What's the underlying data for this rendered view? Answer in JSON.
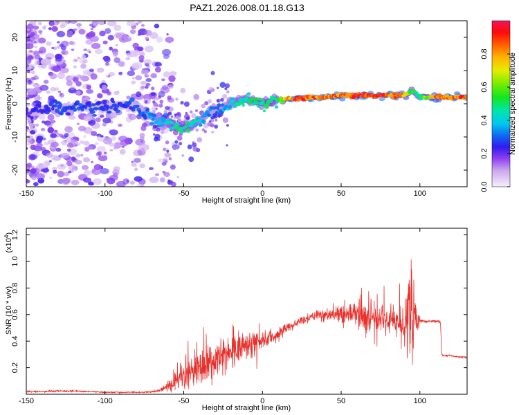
{
  "chart_data": [
    {
      "type": "heatmap",
      "title": "PAZ1.2026.008.01.18.G13",
      "xlabel": "Height of straight line (km)",
      "ylabel": "Frequency (Hz)",
      "xlim": [
        -150,
        130
      ],
      "ylim": [
        -25,
        25
      ],
      "x_ticks": [
        -150,
        -100,
        -50,
        0,
        50,
        100
      ],
      "x_tick_labels": [
        "-150",
        "-100",
        "-50",
        "0",
        "50",
        "100"
      ],
      "y_ticks": [
        -20,
        -10,
        0,
        10,
        20
      ],
      "y_tick_labels": [
        "-20",
        "-10",
        "0",
        "10",
        "20"
      ],
      "ridge": {
        "x": [
          -150,
          -140,
          -130,
          -120,
          -110,
          -100,
          -90,
          -80,
          -75,
          -70,
          -65,
          -60,
          -55,
          -50,
          -45,
          -40,
          -35,
          -30,
          -25,
          -20,
          -15,
          -10,
          -5,
          0,
          5,
          10,
          15,
          20,
          30,
          40,
          50,
          60,
          70,
          80,
          90,
          95,
          100,
          110,
          120,
          130
        ],
        "freq": [
          -3,
          -1.5,
          -1,
          -1,
          -1,
          -1,
          -0.5,
          -1,
          -3,
          -4,
          -5,
          -6,
          -7,
          -7,
          -6,
          -5,
          -3,
          -2,
          -1,
          0,
          1,
          1.5,
          1,
          0,
          0.5,
          1,
          1.5,
          1.5,
          2,
          2,
          2.5,
          2.5,
          2.5,
          2.5,
          2.5,
          4,
          2,
          2,
          2,
          2
        ],
        "amplitude": [
          0.22,
          0.25,
          0.28,
          0.28,
          0.27,
          0.27,
          0.27,
          0.28,
          0.3,
          0.35,
          0.38,
          0.42,
          0.48,
          0.5,
          0.45,
          0.4,
          0.35,
          0.3,
          0.35,
          0.4,
          0.45,
          0.45,
          0.5,
          0.5,
          0.5,
          0.5,
          0.75,
          0.9,
          0.9,
          0.85,
          0.85,
          0.9,
          0.95,
          0.9,
          0.8,
          0.55,
          0.5,
          0.8,
          0.9,
          0.85
        ]
      },
      "colorbar": {
        "label": "Normalized spectral amplitude",
        "ticks": [
          0.0,
          0.2,
          0.4,
          0.6,
          0.8
        ],
        "tick_labels": [
          "0.0",
          "0.2",
          "0.4",
          "0.6",
          "0.8"
        ],
        "range": [
          0,
          1
        ]
      }
    },
    {
      "type": "line",
      "xlabel": "Height of straight line (km)",
      "ylabel": "SNR (10 * v/v)",
      "y_exponent_label": "(x10",
      "y_exponent_power": "4",
      "y_exponent_close": ")",
      "xlim": [
        -150,
        130
      ],
      "ylim": [
        0,
        1.25
      ],
      "x_ticks": [
        -150,
        -100,
        -50,
        0,
        50,
        100
      ],
      "x_tick_labels": [
        "-150",
        "-100",
        "-50",
        "0",
        "50",
        "100"
      ],
      "y_ticks": [
        0.2,
        0.4,
        0.6,
        0.8,
        1.0,
        1.2
      ],
      "y_tick_labels": [
        "0.2",
        "0.4",
        "0.6",
        "0.8",
        "1.0",
        "1.2"
      ],
      "color": "#e8302c",
      "series": [
        {
          "name": "SNR",
          "x": [
            -150,
            -140,
            -130,
            -120,
            -110,
            -100,
            -90,
            -80,
            -75,
            -70,
            -65,
            -60,
            -55,
            -50,
            -45,
            -40,
            -35,
            -30,
            -25,
            -20,
            -15,
            -10,
            -5,
            0,
            5,
            10,
            15,
            20,
            25,
            30,
            35,
            40,
            45,
            50,
            55,
            60,
            65,
            70,
            75,
            80,
            85,
            90,
            92,
            95,
            97,
            100,
            105,
            110,
            113,
            114,
            115,
            120,
            125,
            130
          ],
          "mean": [
            0.02,
            0.02,
            0.025,
            0.025,
            0.02,
            0.015,
            0.015,
            0.015,
            0.015,
            0.02,
            0.03,
            0.06,
            0.1,
            0.14,
            0.17,
            0.2,
            0.23,
            0.27,
            0.3,
            0.33,
            0.35,
            0.37,
            0.39,
            0.4,
            0.43,
            0.46,
            0.5,
            0.53,
            0.56,
            0.58,
            0.6,
            0.6,
            0.6,
            0.6,
            0.6,
            0.6,
            0.6,
            0.55,
            0.58,
            0.55,
            0.55,
            0.55,
            0.6,
            0.6,
            0.6,
            0.55,
            0.55,
            0.55,
            0.55,
            0.3,
            0.29,
            0.29,
            0.28,
            0.28
          ],
          "noise": [
            0.005,
            0.005,
            0.005,
            0.005,
            0.004,
            0.004,
            0.004,
            0.004,
            0.004,
            0.005,
            0.01,
            0.03,
            0.07,
            0.1,
            0.11,
            0.12,
            0.12,
            0.12,
            0.12,
            0.11,
            0.1,
            0.09,
            0.08,
            0.06,
            0.05,
            0.04,
            0.04,
            0.03,
            0.03,
            0.03,
            0.04,
            0.04,
            0.05,
            0.06,
            0.08,
            0.09,
            0.12,
            0.1,
            0.1,
            0.1,
            0.1,
            0.15,
            0.3,
            0.35,
            0.2,
            0.01,
            0.01,
            0.01,
            0.01,
            0.005,
            0.005,
            0.005,
            0.005,
            0.005
          ]
        }
      ]
    }
  ],
  "colors": {
    "line": "#e8302c",
    "axis": "#000000",
    "background": "#ffffff"
  }
}
